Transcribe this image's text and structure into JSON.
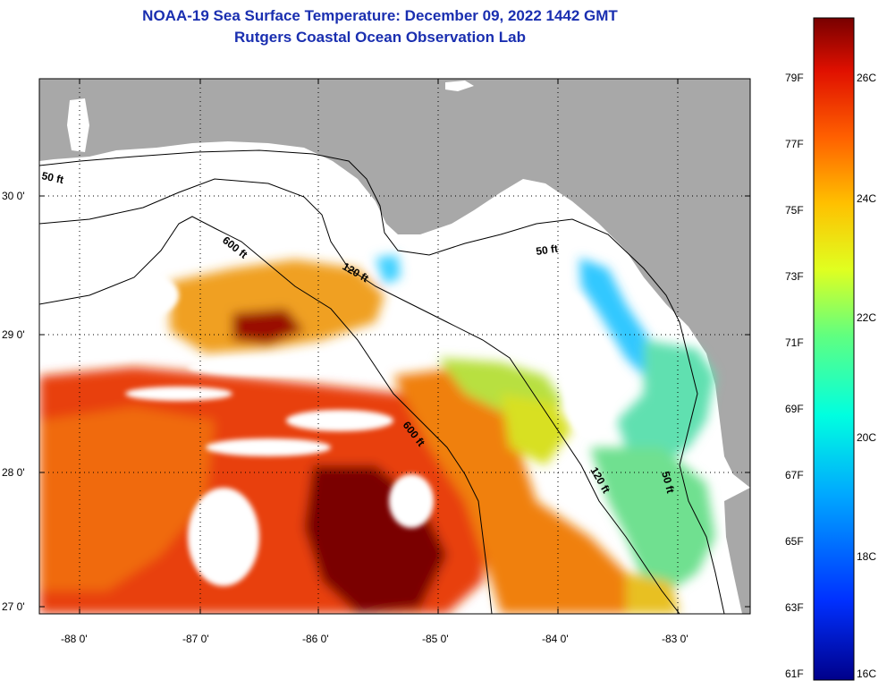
{
  "title": {
    "line1": "NOAA-19 Sea Surface Temperature:  December 09, 2022 1442 GMT",
    "line2": "Rutgers Coastal Ocean Observation Lab"
  },
  "axes": {
    "lat_ticks": [
      "30 0'",
      "29 0'",
      "28 0'",
      "27 0'"
    ],
    "lon_ticks": [
      "-88 0'",
      "-87 0'",
      "-86 0'",
      "-85 0'",
      "-84 0'",
      "-83 0'"
    ]
  },
  "contours": {
    "label_50": "50 ft",
    "label_120": "120 ft",
    "label_600": "600 ft"
  },
  "colorbar": {
    "fahrenheit": [
      "79F",
      "77F",
      "75F",
      "73F",
      "71F",
      "69F",
      "67F",
      "65F",
      "63F",
      "61F"
    ],
    "celsius": [
      "26C",
      "24C",
      "22C",
      "20C",
      "18C",
      "16C"
    ],
    "range_c": [
      16,
      27
    ]
  },
  "colors": {
    "land": "#a8a8a8",
    "title": "#1a2fb0"
  }
}
